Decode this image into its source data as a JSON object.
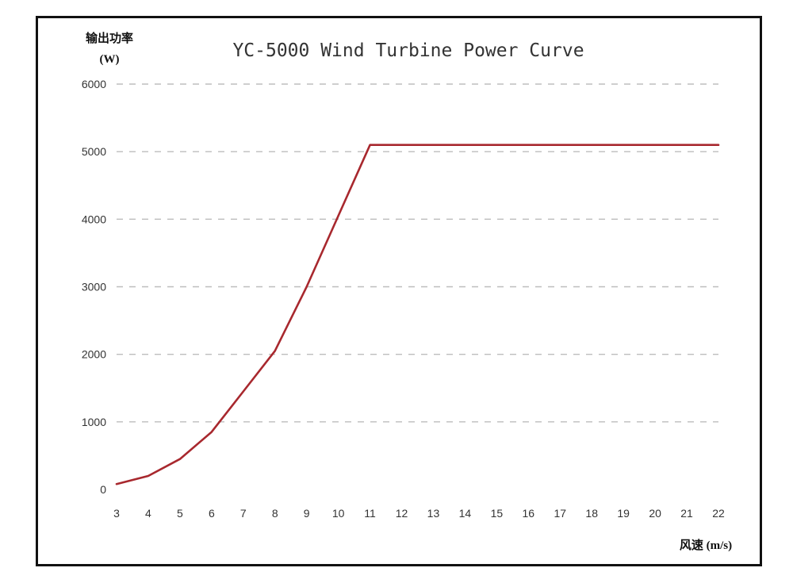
{
  "chart_data": {
    "type": "line",
    "title": "YC-5000 Wind Turbine Power Curve",
    "ylabel": "输出功率",
    "ylabel_unit": "(W)",
    "xlabel": "风速 (m/s)",
    "xlim": [
      3,
      22
    ],
    "ylim": [
      0,
      6000
    ],
    "x_ticks": [
      "3",
      "4",
      "5",
      "6",
      "7",
      "8",
      "9",
      "10",
      "11",
      "12",
      "13",
      "14",
      "15",
      "16",
      "17",
      "18",
      "19",
      "20",
      "21",
      "22"
    ],
    "y_ticks": [
      "0",
      "1000",
      "2000",
      "3000",
      "4000",
      "5000",
      "6000"
    ],
    "grid": true,
    "legend": "none",
    "series": [
      {
        "color": "#a8282e",
        "x": [
          3,
          4,
          5,
          6,
          7,
          8,
          9,
          10,
          11,
          22
        ],
        "values": [
          80,
          200,
          450,
          850,
          1450,
          2050,
          3000,
          4050,
          5100,
          5100
        ]
      }
    ]
  },
  "colors": {
    "frame": "#111111",
    "grid": "#bdbdbd",
    "tick_text": "#333333"
  }
}
